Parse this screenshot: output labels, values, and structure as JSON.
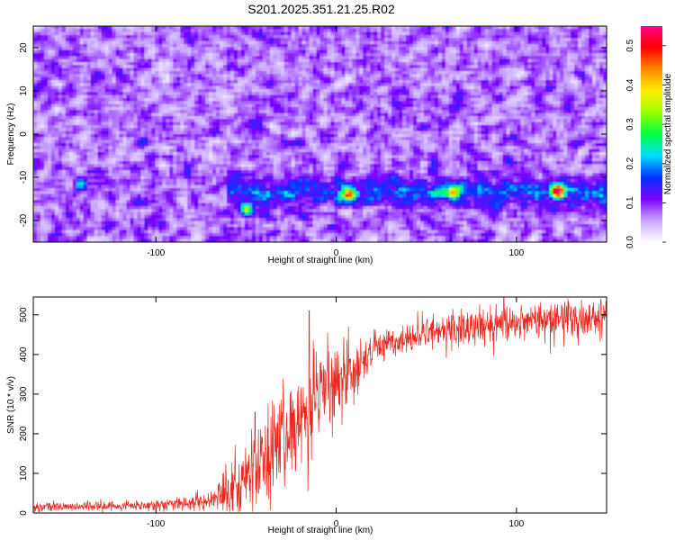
{
  "title": "S201.2025.351.21.25.R02",
  "chart_data": [
    {
      "type": "heatmap",
      "xlabel": "Height of straight line (km)",
      "ylabel": "Frequency (Hz)",
      "xlim": [
        -168,
        150
      ],
      "ylim": [
        -25,
        25
      ],
      "x_ticks": [
        -100,
        0,
        100
      ],
      "y_ticks": [
        -20,
        -10,
        0,
        10,
        20
      ],
      "colorbar": {
        "label": "Normalized spectral amplitude",
        "range": [
          0,
          0.55
        ],
        "ticks": [
          0,
          0.1,
          0.2,
          0.3,
          0.4,
          0.5
        ],
        "colors": [
          "#ffffff",
          "#c9a6ff",
          "#7a00ff",
          "#0033ff",
          "#00ddff",
          "#00ff44",
          "#99ff00",
          "#ffee00",
          "#ff8800",
          "#ff0000",
          "#ff0088"
        ]
      },
      "band": {
        "center_hz": -13.5,
        "width_hz": 3,
        "start_km": -60
      },
      "hotspots": [
        {
          "x": -50,
          "y": -17.5,
          "value": 0.27
        },
        {
          "x": 7,
          "y": -14,
          "value": 0.3
        },
        {
          "x": 65,
          "y": -13.5,
          "value": 0.28
        },
        {
          "x": 123,
          "y": -13.2,
          "value": 0.45
        },
        {
          "x": -142,
          "y": -11.5,
          "value": 0.2
        }
      ]
    },
    {
      "type": "line",
      "xlabel": "Height of straight line (km)",
      "ylabel": "SNR (10 * v/v)",
      "xlim": [
        -168,
        150
      ],
      "ylim": [
        0,
        545
      ],
      "x_ticks": [
        -100,
        0,
        100
      ],
      "y_ticks": [
        0,
        100,
        200,
        300,
        400,
        500
      ],
      "color": "#e8281e",
      "trend_x": [
        -168,
        -120,
        -90,
        -70,
        -55,
        -45,
        -30,
        -20,
        -10,
        0,
        10,
        20,
        30,
        50,
        80,
        110,
        150
      ],
      "trend_y": [
        15,
        18,
        22,
        30,
        70,
        120,
        170,
        230,
        300,
        330,
        360,
        410,
        430,
        455,
        470,
        485,
        495
      ],
      "noise_amp": [
        12,
        12,
        15,
        25,
        80,
        90,
        110,
        110,
        100,
        80,
        70,
        40,
        30,
        40,
        45,
        45,
        45
      ],
      "spikes": [
        {
          "x": -15,
          "y": 510
        },
        {
          "x": 4,
          "y": 405
        },
        {
          "x": 93,
          "y": 545
        },
        {
          "x": -45,
          "y": 255
        }
      ]
    }
  ]
}
